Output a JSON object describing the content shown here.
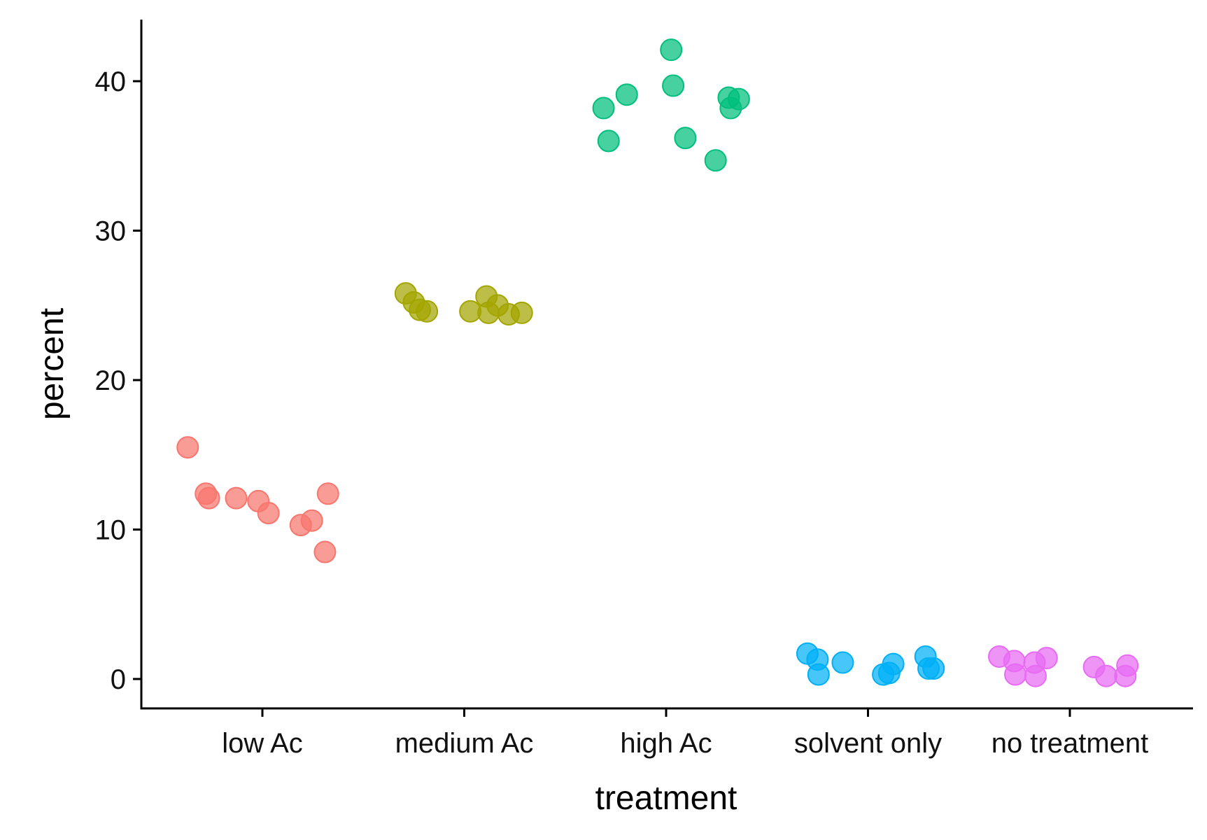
{
  "chart_data": {
    "type": "scatter",
    "title": "",
    "xlabel": "treatment",
    "ylabel": "percent",
    "categories": [
      "low Ac",
      "medium Ac",
      "high Ac",
      "solvent only",
      "no treatment"
    ],
    "ylim": [
      -2,
      44
    ],
    "yticks": [
      0,
      10,
      20,
      30,
      40
    ],
    "grid": false,
    "legend": "none",
    "series": [
      {
        "category": "low Ac",
        "color": "#F8766D",
        "points": [
          {
            "x": -0.37,
            "y": 15.5
          },
          {
            "x": -0.28,
            "y": 12.4
          },
          {
            "x": -0.265,
            "y": 12.1
          },
          {
            "x": -0.13,
            "y": 12.1
          },
          {
            "x": -0.02,
            "y": 11.9
          },
          {
            "x": 0.03,
            "y": 11.1
          },
          {
            "x": 0.19,
            "y": 10.3
          },
          {
            "x": 0.245,
            "y": 10.6
          },
          {
            "x": 0.31,
            "y": 8.5
          },
          {
            "x": 0.325,
            "y": 12.4
          }
        ]
      },
      {
        "category": "medium Ac",
        "color": "#A3A500",
        "points": [
          {
            "x": -0.29,
            "y": 25.8
          },
          {
            "x": -0.25,
            "y": 25.2
          },
          {
            "x": -0.22,
            "y": 24.7
          },
          {
            "x": -0.185,
            "y": 24.6
          },
          {
            "x": 0.03,
            "y": 24.6
          },
          {
            "x": 0.11,
            "y": 25.6
          },
          {
            "x": 0.12,
            "y": 24.5
          },
          {
            "x": 0.165,
            "y": 25.0
          },
          {
            "x": 0.22,
            "y": 24.4
          },
          {
            "x": 0.285,
            "y": 24.5
          }
        ]
      },
      {
        "category": "high Ac",
        "color": "#00BF7D",
        "points": [
          {
            "x": -0.31,
            "y": 38.2
          },
          {
            "x": -0.285,
            "y": 36.0
          },
          {
            "x": -0.195,
            "y": 39.1
          },
          {
            "x": 0.025,
            "y": 42.1
          },
          {
            "x": 0.035,
            "y": 39.7
          },
          {
            "x": 0.095,
            "y": 36.2
          },
          {
            "x": 0.245,
            "y": 34.7
          },
          {
            "x": 0.31,
            "y": 38.9
          },
          {
            "x": 0.32,
            "y": 38.2
          },
          {
            "x": 0.36,
            "y": 38.8
          }
        ]
      },
      {
        "category": "solvent only",
        "color": "#00B0F6",
        "points": [
          {
            "x": -0.3,
            "y": 1.7
          },
          {
            "x": -0.25,
            "y": 1.3
          },
          {
            "x": -0.245,
            "y": 0.3
          },
          {
            "x": -0.125,
            "y": 1.1
          },
          {
            "x": 0.075,
            "y": 0.3
          },
          {
            "x": 0.105,
            "y": 0.4
          },
          {
            "x": 0.125,
            "y": 1.0
          },
          {
            "x": 0.285,
            "y": 1.5
          },
          {
            "x": 0.3,
            "y": 0.7
          },
          {
            "x": 0.325,
            "y": 0.7
          }
        ]
      },
      {
        "category": "no treatment",
        "color": "#E76BF3",
        "points": [
          {
            "x": -0.35,
            "y": 1.5
          },
          {
            "x": -0.275,
            "y": 1.2
          },
          {
            "x": -0.27,
            "y": 0.3
          },
          {
            "x": -0.175,
            "y": 1.1
          },
          {
            "x": -0.17,
            "y": 0.2
          },
          {
            "x": -0.115,
            "y": 1.4
          },
          {
            "x": 0.12,
            "y": 0.8
          },
          {
            "x": 0.18,
            "y": 0.2
          },
          {
            "x": 0.275,
            "y": 0.2
          },
          {
            "x": 0.285,
            "y": 0.9
          }
        ]
      }
    ]
  }
}
